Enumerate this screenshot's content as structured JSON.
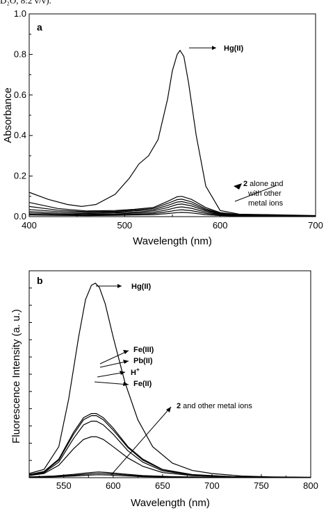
{
  "header_fragment": "D₂O, 8:2 v/v).",
  "chart_data": [
    {
      "type": "line",
      "panel_label": "a",
      "xlabel": "Wavelength (nm)",
      "ylabel": "Absorbance",
      "xlim": [
        400,
        700
      ],
      "ylim": [
        0.0,
        1.0
      ],
      "x_ticks": [
        "400",
        "500",
        "600",
        "700"
      ],
      "y_ticks": [
        "0.0",
        "0.2",
        "0.4",
        "0.6",
        "0.8",
        "1.0"
      ],
      "annotations": {
        "hg": "Hg(II)",
        "others_bold": "2",
        "others_line1": " alone and",
        "others_line2": "with other",
        "others_line3": "metal ions"
      },
      "series": [
        {
          "x": [
            400,
            420,
            440,
            455,
            470,
            490,
            505,
            515,
            525,
            535,
            545,
            550,
            555,
            558,
            562,
            567,
            575,
            585,
            600,
            620,
            650,
            700
          ],
          "y": [
            0.12,
            0.085,
            0.06,
            0.05,
            0.06,
            0.11,
            0.19,
            0.26,
            0.3,
            0.38,
            0.58,
            0.72,
            0.8,
            0.82,
            0.79,
            0.66,
            0.4,
            0.15,
            0.03,
            0.012,
            0.01,
            0.005
          ]
        },
        {
          "x": [
            400,
            430,
            460,
            490,
            510,
            530,
            545,
            555,
            560,
            570,
            585,
            600,
            620,
            700
          ],
          "y": [
            0.07,
            0.04,
            0.028,
            0.03,
            0.036,
            0.045,
            0.075,
            0.098,
            0.1,
            0.085,
            0.045,
            0.02,
            0.01,
            0.004
          ]
        },
        {
          "x": [
            400,
            430,
            460,
            490,
            510,
            530,
            545,
            555,
            560,
            570,
            585,
            600,
            620,
            700
          ],
          "y": [
            0.05,
            0.032,
            0.024,
            0.026,
            0.032,
            0.04,
            0.065,
            0.084,
            0.086,
            0.073,
            0.038,
            0.017,
            0.009,
            0.004
          ]
        },
        {
          "x": [
            400,
            430,
            460,
            490,
            510,
            530,
            545,
            555,
            560,
            570,
            585,
            600,
            620,
            700
          ],
          "y": [
            0.035,
            0.025,
            0.02,
            0.022,
            0.028,
            0.034,
            0.055,
            0.072,
            0.074,
            0.063,
            0.033,
            0.015,
            0.008,
            0.003
          ]
        },
        {
          "x": [
            400,
            430,
            460,
            490,
            510,
            530,
            545,
            555,
            560,
            570,
            585,
            600,
            620,
            700
          ],
          "y": [
            0.025,
            0.018,
            0.015,
            0.018,
            0.022,
            0.028,
            0.045,
            0.06,
            0.062,
            0.053,
            0.028,
            0.013,
            0.007,
            0.003
          ]
        },
        {
          "x": [
            400,
            430,
            460,
            490,
            510,
            530,
            545,
            555,
            560,
            570,
            585,
            600,
            620,
            700
          ],
          "y": [
            0.018,
            0.013,
            0.011,
            0.013,
            0.017,
            0.021,
            0.034,
            0.046,
            0.048,
            0.041,
            0.022,
            0.01,
            0.005,
            0.002
          ]
        },
        {
          "x": [
            400,
            430,
            460,
            490,
            510,
            530,
            545,
            555,
            560,
            570,
            585,
            600,
            620,
            700
          ],
          "y": [
            0.012,
            0.009,
            0.008,
            0.01,
            0.012,
            0.015,
            0.024,
            0.032,
            0.034,
            0.029,
            0.016,
            0.008,
            0.004,
            0.002
          ]
        },
        {
          "x": [
            400,
            430,
            460,
            490,
            510,
            530,
            545,
            555,
            560,
            570,
            585,
            600,
            620,
            700
          ],
          "y": [
            0.008,
            0.006,
            0.005,
            0.006,
            0.008,
            0.01,
            0.015,
            0.02,
            0.021,
            0.018,
            0.01,
            0.005,
            0.003,
            0.001
          ]
        }
      ]
    },
    {
      "type": "line",
      "panel_label": "b",
      "xlabel": "Wavelength (nm)",
      "ylabel": "Fluorescence Intensity (a. u.)",
      "xlim": [
        515,
        800
      ],
      "ylim": [
        0,
        100
      ],
      "x_ticks": [
        "550",
        "600",
        "650",
        "700",
        "750",
        "800"
      ],
      "annotations": {
        "hg": "Hg(II)",
        "fe3": "Fe(III)",
        "pb": "Pb(II)",
        "h": "H",
        "h_sup": "+",
        "fe2": "Fe(II)",
        "others_bold": "2",
        "others_rest": " and other metal ions"
      },
      "series": [
        {
          "name": "Hg(II)",
          "x": [
            515,
            530,
            545,
            555,
            565,
            572,
            578,
            582,
            586,
            592,
            600,
            612,
            625,
            640,
            660,
            680,
            700,
            730,
            760,
            800
          ],
          "y": [
            2,
            4,
            15,
            38,
            68,
            86,
            93,
            94,
            92,
            84,
            68,
            46,
            28,
            15,
            7,
            3.5,
            2,
            0.8,
            0.4,
            0.2
          ]
        },
        {
          "name": "Fe(III)",
          "x": [
            515,
            530,
            545,
            560,
            570,
            578,
            583,
            590,
            600,
            615,
            630,
            650,
            680,
            720,
            800
          ],
          "y": [
            1.5,
            3,
            9,
            22,
            29,
            31,
            31,
            29,
            24,
            15,
            9,
            4,
            1.5,
            0.5,
            0.1
          ]
        },
        {
          "name": "Pb(II)",
          "x": [
            515,
            530,
            545,
            560,
            570,
            578,
            583,
            590,
            600,
            615,
            630,
            650,
            680,
            720,
            800
          ],
          "y": [
            1.4,
            2.8,
            8.5,
            21,
            28,
            30,
            30,
            28,
            23,
            14.5,
            8.5,
            3.8,
            1.4,
            0.5,
            0.1
          ]
        },
        {
          "name": "H+",
          "x": [
            515,
            530,
            545,
            560,
            570,
            578,
            583,
            590,
            600,
            615,
            630,
            650,
            680,
            720,
            800
          ],
          "y": [
            1.2,
            2.4,
            7.5,
            19,
            25.5,
            27.3,
            27.3,
            25.5,
            21,
            13,
            7.5,
            3.3,
            1.2,
            0.4,
            0.1
          ]
        },
        {
          "name": "Fe(II)",
          "x": [
            515,
            530,
            545,
            560,
            570,
            578,
            583,
            590,
            600,
            615,
            630,
            650,
            680,
            720,
            800
          ],
          "y": [
            1,
            2,
            6,
            14,
            18.5,
            19.8,
            19.8,
            18.5,
            15,
            9.5,
            5.5,
            2.5,
            1,
            0.3,
            0.1
          ]
        },
        {
          "x": [
            515,
            540,
            560,
            575,
            585,
            595,
            610,
            630,
            660,
            700,
            800
          ],
          "y": [
            0.4,
            0.8,
            1.6,
            2.4,
            2.8,
            2.5,
            1.8,
            1.0,
            0.5,
            0.2,
            0.05
          ]
        },
        {
          "x": [
            515,
            540,
            560,
            575,
            585,
            595,
            610,
            630,
            660,
            700,
            800
          ],
          "y": [
            0.3,
            0.6,
            1.2,
            1.8,
            2.1,
            1.9,
            1.4,
            0.8,
            0.4,
            0.15,
            0.04
          ]
        },
        {
          "x": [
            515,
            540,
            560,
            575,
            585,
            595,
            610,
            630,
            660,
            700,
            800
          ],
          "y": [
            0.2,
            0.4,
            0.8,
            1.2,
            1.4,
            1.3,
            0.9,
            0.5,
            0.25,
            0.1,
            0.03
          ]
        }
      ]
    }
  ]
}
